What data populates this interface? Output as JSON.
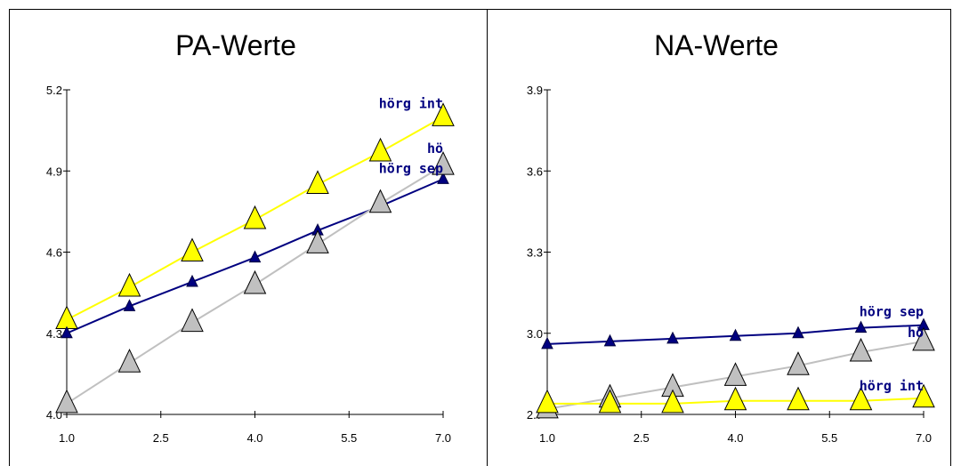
{
  "chart_data": [
    {
      "type": "line",
      "title": "PA-Werte",
      "xlabel": "",
      "ylabel": "",
      "xlim": [
        1.0,
        7.0
      ],
      "ylim": [
        4.0,
        5.2
      ],
      "xticks": [
        "1.0",
        "2.5",
        "4.0",
        "5.5",
        "7.0"
      ],
      "yticks": [
        "4.0",
        "4.3",
        "4.6",
        "4.9",
        "5.2"
      ],
      "grid": false,
      "x": [
        1,
        2,
        3,
        4,
        5,
        6,
        7
      ],
      "series": [
        {
          "name": "hörg int",
          "color": "#ffff00",
          "marker": "large-triangle",
          "values": [
            4.35,
            4.47,
            4.6,
            4.72,
            4.85,
            4.97,
            5.1
          ]
        },
        {
          "name": "hörg sep",
          "color": "#000080",
          "marker": "small-triangle",
          "values": [
            4.3,
            4.4,
            4.49,
            4.58,
            4.68,
            4.77,
            4.87
          ]
        },
        {
          "name": "hö",
          "color": "#c0c0c0",
          "marker": "large-triangle",
          "values": [
            4.04,
            4.19,
            4.34,
            4.48,
            4.63,
            4.78,
            4.92
          ]
        }
      ]
    },
    {
      "type": "line",
      "title": "NA-Werte",
      "xlabel": "",
      "ylabel": "",
      "xlim": [
        1.0,
        7.0
      ],
      "ylim": [
        2.7,
        3.9
      ],
      "xticks": [
        "1.0",
        "2.5",
        "4.0",
        "5.5",
        "7.0"
      ],
      "yticks": [
        "2.7",
        "3.0",
        "3.3",
        "3.6",
        "3.9"
      ],
      "grid": false,
      "x": [
        1,
        2,
        3,
        4,
        5,
        6,
        7
      ],
      "series": [
        {
          "name": "hörg sep",
          "color": "#000080",
          "marker": "small-triangle",
          "values": [
            2.96,
            2.97,
            2.98,
            2.99,
            3.0,
            3.02,
            3.03
          ]
        },
        {
          "name": "hö",
          "color": "#c0c0c0",
          "marker": "large-triangle",
          "values": [
            2.72,
            2.76,
            2.8,
            2.84,
            2.88,
            2.93,
            2.97
          ]
        },
        {
          "name": "hörg int",
          "color": "#ffff00",
          "marker": "large-triangle",
          "values": [
            2.74,
            2.74,
            2.74,
            2.75,
            2.75,
            2.75,
            2.76
          ]
        }
      ]
    }
  ]
}
